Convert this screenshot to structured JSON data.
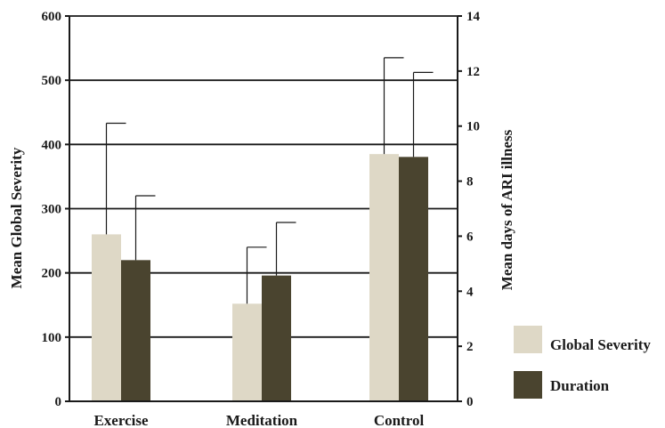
{
  "chart_data": {
    "type": "bar",
    "categories": [
      "Exercise",
      "Meditation",
      "Control"
    ],
    "series": [
      {
        "name": "Global Severity",
        "axis": "left",
        "color": "#ded8c6",
        "values": [
          260,
          152,
          385
        ],
        "error_upper": [
          433,
          240,
          535
        ]
      },
      {
        "name": "Duration",
        "axis": "right",
        "color": "#4a442f",
        "values": [
          5.13,
          4.57,
          8.88
        ],
        "error_upper": [
          7.47,
          6.5,
          11.95
        ]
      }
    ],
    "ylabel": "Mean Global Severity",
    "ylim": [
      0,
      600
    ],
    "yticks": [
      0,
      100,
      200,
      300,
      400,
      500,
      600
    ],
    "y2label": "Mean days of ARI illness",
    "y2lim": [
      0,
      14
    ],
    "y2ticks": [
      0,
      2,
      4,
      6,
      8,
      10,
      12,
      14
    ],
    "grid": true,
    "legend_position": "bottom-right"
  }
}
